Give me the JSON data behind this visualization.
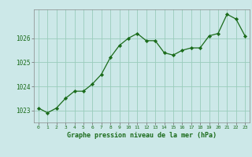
{
  "x": [
    0,
    1,
    2,
    3,
    4,
    5,
    6,
    7,
    8,
    9,
    10,
    11,
    12,
    13,
    14,
    15,
    16,
    17,
    18,
    19,
    20,
    21,
    22,
    23
  ],
  "y": [
    1023.1,
    1022.9,
    1023.1,
    1023.5,
    1023.8,
    1023.8,
    1024.1,
    1024.5,
    1025.2,
    1025.7,
    1026.0,
    1026.2,
    1025.9,
    1025.9,
    1025.4,
    1025.3,
    1025.5,
    1025.6,
    1025.6,
    1026.1,
    1026.2,
    1027.0,
    1026.8,
    1026.1
  ],
  "line_color": "#1a6b1a",
  "marker_color": "#1a6b1a",
  "bg_color": "#cce8e8",
  "grid_color": "#99ccbb",
  "axis_label_color": "#1a6b1a",
  "xlabel": "Graphe pression niveau de la mer (hPa)",
  "ylim": [
    1022.5,
    1027.2
  ],
  "yticks": [
    1023,
    1024,
    1025,
    1026
  ],
  "xticks": [
    0,
    1,
    2,
    3,
    4,
    5,
    6,
    7,
    8,
    9,
    10,
    11,
    12,
    13,
    14,
    15,
    16,
    17,
    18,
    19,
    20,
    21,
    22,
    23
  ]
}
